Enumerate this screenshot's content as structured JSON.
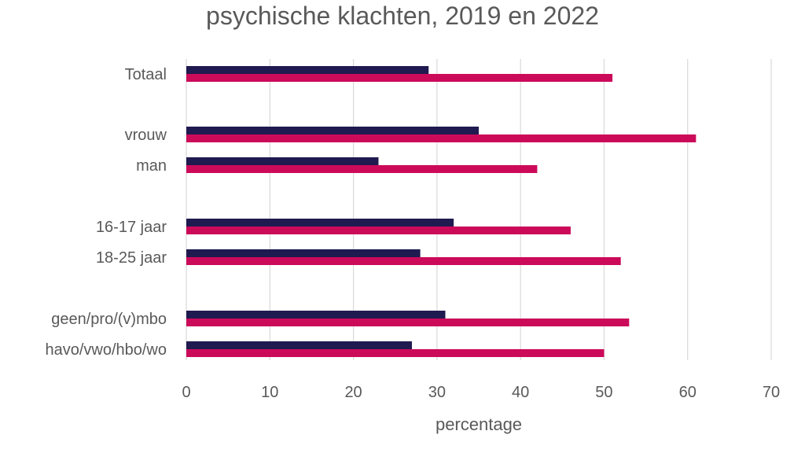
{
  "chart_data": {
    "type": "bar",
    "orientation": "horizontal",
    "title": "psychische klachten, 2019 en 2022",
    "xlabel": "percentage",
    "ylabel": "",
    "xlim": [
      0,
      70
    ],
    "xticks": [
      0,
      10,
      20,
      30,
      40,
      50,
      60,
      70
    ],
    "grid": true,
    "legend": "none",
    "categories": [
      "Totaal",
      "vrouw",
      "man",
      "16-17 jaar",
      "18-25 jaar",
      "geen/pro/(v)mbo",
      "havo/vwo/hbo/wo"
    ],
    "groups": [
      [
        "Totaal"
      ],
      [
        "vrouw",
        "man"
      ],
      [
        "16-17 jaar",
        "18-25 jaar"
      ],
      [
        "geen/pro/(v)mbo",
        "havo/vwo/hbo/wo"
      ]
    ],
    "series": [
      {
        "color": "#1f1a4f",
        "values": [
          29,
          35,
          23,
          32,
          28,
          31,
          27
        ]
      },
      {
        "color": "#cc0a5a",
        "values": [
          51,
          61,
          42,
          46,
          52,
          53,
          50
        ]
      }
    ],
    "gridline_color": "#d9d9d9"
  }
}
